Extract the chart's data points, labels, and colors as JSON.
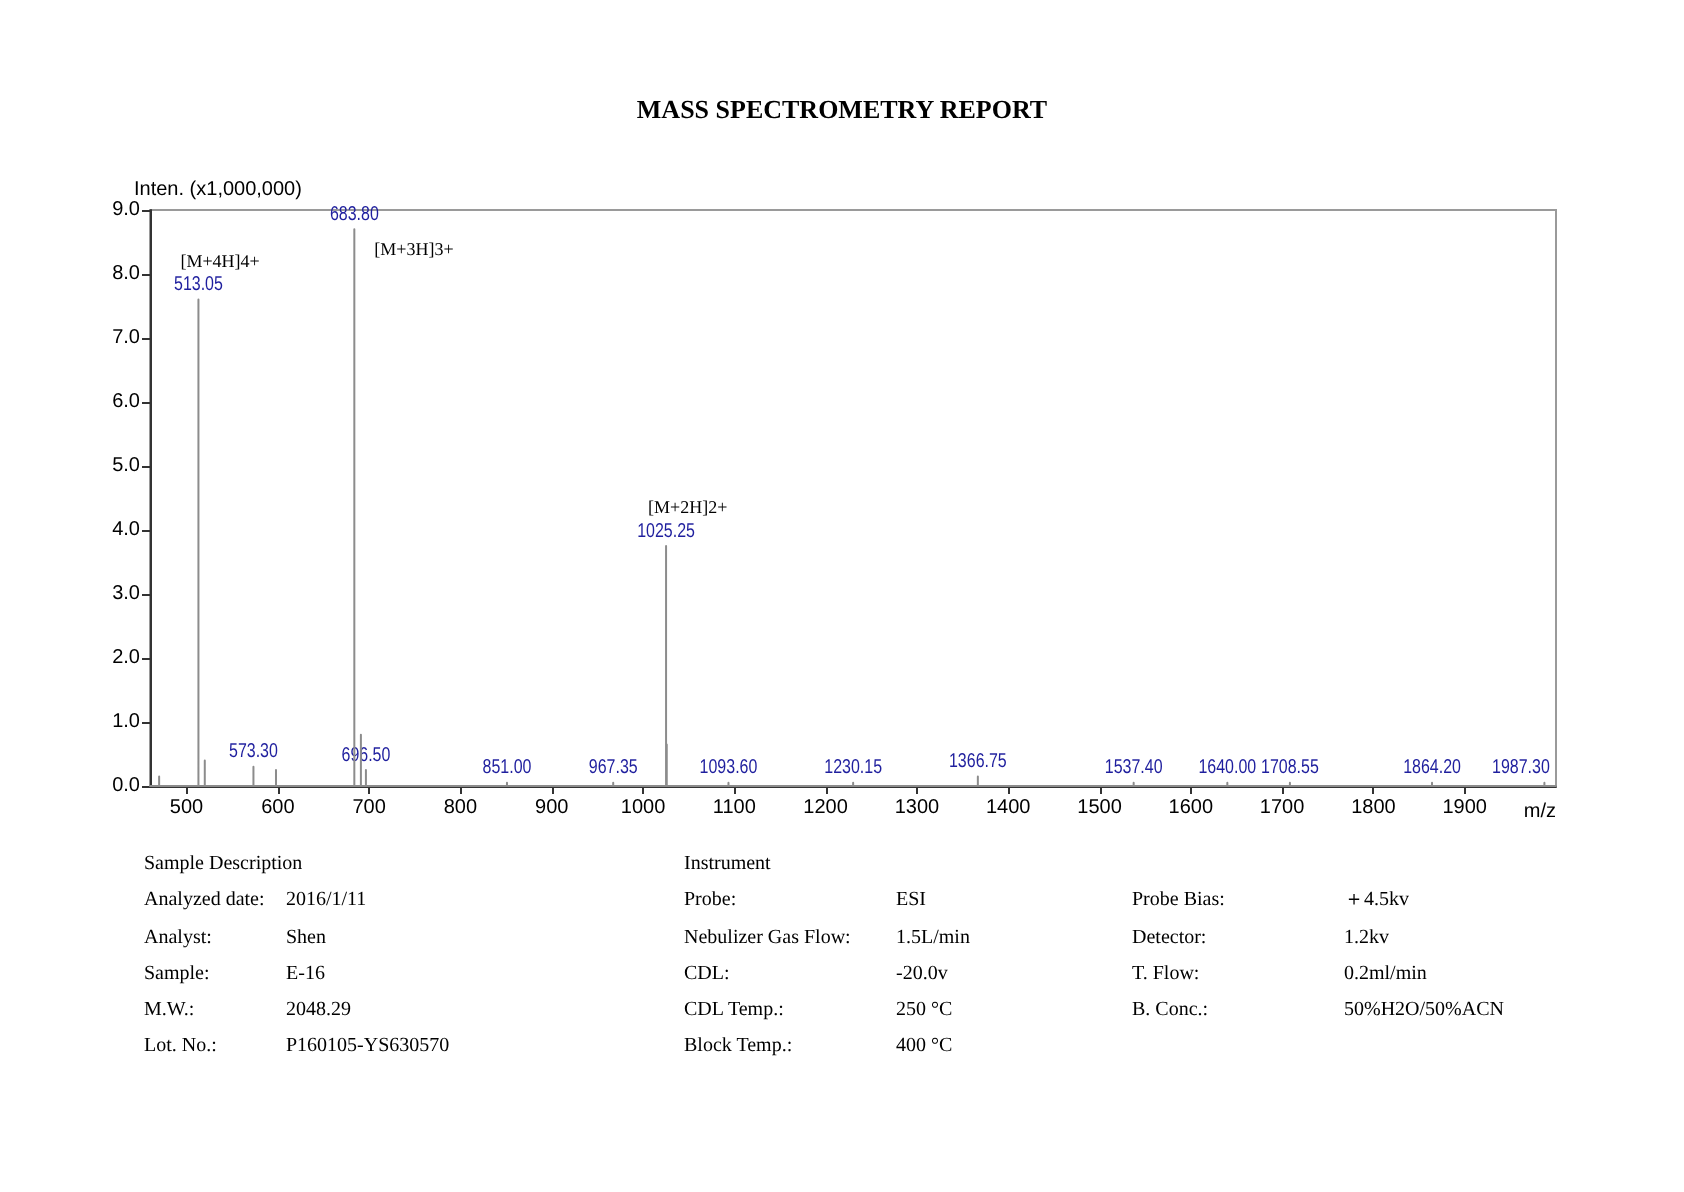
{
  "chart_data": {
    "type": "line",
    "title": "MASS SPECTROMETRY REPORT",
    "xlabel": "m/z",
    "ylabel": "Inten. (x1,000,000)",
    "x": [
      460,
      470,
      470,
      470,
      513.05,
      513.05,
      513.05,
      520,
      520,
      520,
      573.3,
      573.3,
      573.3,
      598,
      598,
      598,
      683.8,
      683.8,
      683.8,
      691,
      691,
      691,
      696.5,
      696.5,
      696.5,
      851,
      851,
      851,
      967.35,
      967.35,
      967.35,
      1025.25,
      1025.25,
      1025.25,
      1026,
      1026,
      1026,
      1093.6,
      1093.6,
      1093.6,
      1230.15,
      1230.15,
      1230.15,
      1366.75,
      1366.75,
      1366.75,
      1537.4,
      1537.4,
      1537.4,
      1640,
      1640,
      1640,
      1708.55,
      1708.55,
      1708.55,
      1864.2,
      1864.2,
      1864.2,
      1987.3,
      1987.3,
      1987.3,
      2000
    ],
    "values": [
      0,
      0,
      0.15,
      0,
      0,
      7.6,
      0,
      0,
      0.4,
      0,
      0,
      0.3,
      0,
      0,
      0.25,
      0,
      0,
      8.7,
      0,
      0,
      0.8,
      0,
      0,
      0.25,
      0,
      0,
      0.05,
      0,
      0,
      0.05,
      0,
      0,
      3.75,
      0,
      0,
      0.65,
      0,
      0,
      0.05,
      0,
      0,
      0.05,
      0,
      0,
      0.15,
      0,
      0,
      0.05,
      0,
      0,
      0.05,
      0,
      0,
      0.05,
      0,
      0,
      0.05,
      0,
      0,
      0.05,
      0,
      0
    ],
    "color": "#8c8c8c",
    "marker": "none",
    "xlim": [
      460,
      2000
    ],
    "xticks": [
      500,
      600,
      700,
      800,
      900,
      1000,
      1100,
      1200,
      1300,
      1400,
      1500,
      1600,
      1700,
      1800,
      1900
    ],
    "ylim": [
      0,
      9
    ],
    "yticks": [
      {
        "value": 0,
        "label": "0.0"
      },
      {
        "value": 1,
        "label": "1.0"
      },
      {
        "value": 2,
        "label": "2.0"
      },
      {
        "value": 3,
        "label": "3.0"
      },
      {
        "value": 4,
        "label": "4.0"
      },
      {
        "value": 5,
        "label": "5.0"
      },
      {
        "value": 6,
        "label": "6.0"
      },
      {
        "value": 7,
        "label": "7.0"
      },
      {
        "value": 8,
        "label": "8.0"
      },
      {
        "value": 9,
        "label": "9.0"
      }
    ],
    "annotations": [
      {
        "text": "513.05",
        "x": 513.05,
        "y": 7.6
      },
      {
        "text": "[M+4H]4+",
        "x": 513.05,
        "y": 7.6
      },
      {
        "text": "683.80",
        "x": 683.8,
        "y": 8.7
      },
      {
        "text": "[M+3H]3+",
        "x": 683.8,
        "y": 8.7
      },
      {
        "text": "1025.25",
        "x": 1025.25,
        "y": 3.75
      },
      {
        "text": "[M+2H]2+",
        "x": 1025.25,
        "y": 3.75
      },
      {
        "text": "573.30",
        "x": 573.3,
        "y": 0.3
      },
      {
        "text": "696.50",
        "x": 696.5,
        "y": 0.25
      },
      {
        "text": "851.00",
        "x": 851,
        "y": 0.05
      },
      {
        "text": "967.35",
        "x": 967.35,
        "y": 0.05
      },
      {
        "text": "1093.60",
        "x": 1093.6,
        "y": 0.05
      },
      {
        "text": "1230.15",
        "x": 1230.15,
        "y": 0.05
      },
      {
        "text": "1366.75",
        "x": 1366.75,
        "y": 0.15
      },
      {
        "text": "1537.40",
        "x": 1537.4,
        "y": 0.05
      },
      {
        "text": "1640.00",
        "x": 1640,
        "y": 0.05
      },
      {
        "text": "1708.55",
        "x": 1708.55,
        "y": 0.05
      },
      {
        "text": "1864.20",
        "x": 1864.2,
        "y": 0.05
      },
      {
        "text": "1987.30",
        "x": 1987.3,
        "y": 0.05
      },
      "Sample Description",
      "Instrument",
      "Analyzed date:",
      "2016/1/11",
      "Probe:",
      "ESI",
      "Probe Bias:",
      "＋4.5kv",
      "Analyst:",
      "Shen",
      "Nebulizer Gas Flow:",
      "1.5L/min",
      "Detector:",
      "1.2kv",
      "Sample:",
      "E-16",
      "CDL:",
      "-20.0v",
      "T. Flow:",
      "0.2ml/min",
      "M.W.:",
      "2048.29",
      "CDL Temp.:",
      "250 °C",
      "B. Conc.:",
      "50%H2O/50%ACN",
      "Lot. No.:",
      "P160105-YS630570",
      "Block Temp.:",
      "400 °C"
    ]
  }
}
